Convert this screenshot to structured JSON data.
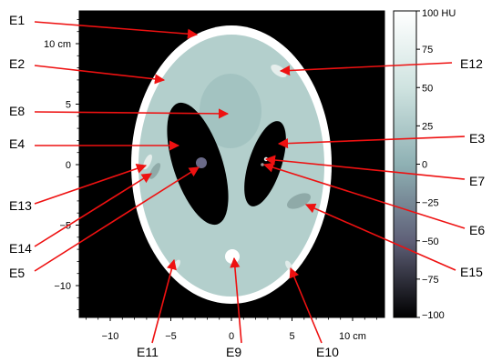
{
  "figure": {
    "phantom_labels": [
      "E1",
      "E2",
      "E3",
      "E4",
      "E5",
      "E6",
      "E7",
      "E8",
      "E9",
      "E10",
      "E11",
      "E12",
      "E13",
      "E14",
      "E15"
    ],
    "x_axis": {
      "ticks": [
        {
          "value": -10,
          "label": "−10"
        },
        {
          "value": -5,
          "label": "−5"
        },
        {
          "value": 0,
          "label": "0"
        },
        {
          "value": 5,
          "label": "5"
        },
        {
          "value": 10,
          "label": "10 cm"
        }
      ]
    },
    "y_axis": {
      "ticks": [
        {
          "value": 10,
          "label": "10 cm"
        },
        {
          "value": 5,
          "label": "5"
        },
        {
          "value": 0,
          "label": "0"
        },
        {
          "value": -5,
          "label": "−5"
        },
        {
          "value": -10,
          "label": "−10"
        }
      ]
    },
    "colorbar": {
      "ticks": [
        {
          "value": 100,
          "label": "100 HU"
        },
        {
          "value": 75,
          "label": "75"
        },
        {
          "value": 50,
          "label": "50"
        },
        {
          "value": 25,
          "label": "25"
        },
        {
          "value": 0,
          "label": "0"
        },
        {
          "value": -25,
          "label": "−25"
        },
        {
          "value": -50,
          "label": "−50"
        },
        {
          "value": -75,
          "label": "−75"
        },
        {
          "value": -100,
          "label": "−100"
        }
      ]
    },
    "colors": {
      "background": "#000000",
      "skull": "#ffffff",
      "brain": "#b3cfcc",
      "ventricle": "#000000",
      "arrow": "#ee1111"
    }
  }
}
